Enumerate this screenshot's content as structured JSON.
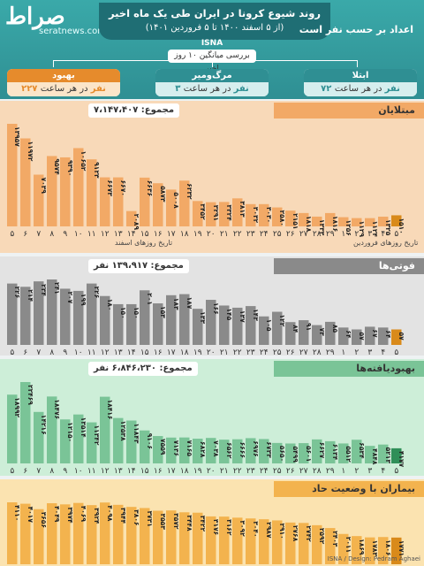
{
  "header": {
    "logo": "صراط",
    "site": "seratnews.com",
    "title": "روند شیوع کرونا در ایران طی یک ماه اخیر",
    "subtitle": "(از ۵ اسفند ۱۴۰۰ تا ۵ فروردین ۱۴۰۱)",
    "agency": "ISNA",
    "per_hour": "اعداد بر حسب نفر است",
    "avg_label": "بررسی میانگین ۱۰ روز اخیر"
  },
  "stats": [
    {
      "title": "بهبود",
      "value": "۲۲۷ نفر",
      "rest": " در هر ساعت",
      "color": "#e68b2c",
      "tone": "#fbe5c9"
    },
    {
      "title": "مرگ‌ومیر",
      "value": "۳ نفر",
      "rest": " در هر ساعت",
      "color": "#2f8f93",
      "tone": "#d6eeee"
    },
    {
      "title": "ابتلا",
      "value": "۷۲ نفر",
      "rest": " در هر ساعت",
      "color": "#2f8f93",
      "tone": "#d6eeee"
    }
  ],
  "x_labels": [
    "۵",
    "۶",
    "۷",
    "۸",
    "۹",
    "۱۰",
    "۱۱",
    "۱۲",
    "۱۳",
    "۱۴",
    "۱۵",
    "۱۶",
    "۱۷",
    "۱۸",
    "۱۹",
    "۲۰",
    "۲۱",
    "۲۲",
    "۲۳",
    "۲۴",
    "۲۵",
    "۲۶",
    "۲۷",
    "۲۸",
    "۲۹",
    "۱",
    "۲",
    "۳",
    "۴",
    "۵"
  ],
  "month_labels": {
    "esfand": "تاریخ روزهای اسفند",
    "farvardin": "تاریخ روزهای فروردین"
  },
  "footer": "ISNA / Design: Pedram Aghaei",
  "chart_data": [
    {
      "type": "bar",
      "title": "مبتلایان",
      "total": "مجموع: ۷،۱۴۷،۴۰۷",
      "color": "#f2a966",
      "highlight": "#d98a1a",
      "bg": "#f8d9b8",
      "categories": [
        "۵",
        "۶",
        "۷",
        "۸",
        "۹",
        "۱۰",
        "۱۱",
        "۱۲",
        "۱۳",
        "۱۴",
        "۱۵",
        "۱۶",
        "۱۷",
        "۱۸",
        "۱۹",
        "۲۰",
        "۲۱",
        "۲۲",
        "۲۳",
        "۲۴",
        "۲۵",
        "۲۶",
        "۲۷",
        "۲۸",
        "۲۹",
        "۱",
        "۲",
        "۳",
        "۴",
        "۵"
      ],
      "values": [
        13957,
        11972,
        7039,
        9574,
        9390,
        10652,
        9123,
        6673,
        6670,
        2089,
        6636,
        5873,
        5008,
        6232,
        3452,
        3291,
        3324,
        3813,
        3032,
        3030,
        2580,
        2151,
        1818,
        1333,
        1816,
        1256,
        1129,
        1124,
        1325,
        1510
      ],
      "labels": [
        "۱۳۹۵۷",
        "۱۱۹۷۲",
        "۷۰۳۹",
        "۹۵۷۴",
        "۹۳۹۰",
        "۱۰۶۵۲",
        "۹۱۲۳",
        "۶۶۷۳",
        "۶۶۷۰",
        "۲۰۸۹",
        "۶۶۳۶",
        "۵۸۷۳",
        "۵۰۰۸",
        "۶۲۳۲",
        "۳۴۵۲",
        "۳۲۹۱",
        "۳۳۲۴",
        "۳۸۱۳",
        "۳۰۳۲",
        "۳۰۳۰",
        "۲۵۸۰",
        "۲۱۵۱",
        "۱۸۱۸",
        "۱۳۳۳",
        "۱۸۱۶",
        "۱۲۵۶",
        "۱۱۲۹",
        "۱۱۲۴",
        "۱۳۲۵",
        "۱۵۱۰"
      ]
    },
    {
      "type": "bar",
      "title": "فوتی‌ها",
      "total": "مجموع: ۱۳۹،۹۱۷ نفر",
      "color": "#8a8a8a",
      "highlight": "#d98a1a",
      "bg": "#e3e3e3",
      "categories": [
        "۵",
        "۶",
        "۷",
        "۸",
        "۹",
        "۱۰",
        "۱۱",
        "۱۲",
        "۱۳",
        "۱۴",
        "۱۵",
        "۱۶",
        "۱۷",
        "۱۸",
        "۱۹",
        "۲۰",
        "۲۱",
        "۲۲",
        "۲۳",
        "۲۴",
        "۲۵",
        "۲۶",
        "۲۷",
        "۲۸",
        "۲۹",
        "۱",
        "۲",
        "۳",
        "۴",
        "۵"
      ],
      "values": [
        226,
        214,
        234,
        241,
        207,
        199,
        226,
        180,
        150,
        150,
        201,
        153,
        183,
        187,
        133,
        166,
        145,
        137,
        143,
        105,
        122,
        84,
        91,
        73,
        85,
        64,
        57,
        67,
        64,
        57
      ],
      "labels": [
        "۲۲۶",
        "۲۱۴",
        "۲۳۴",
        "۲۴۱",
        "۲۰۷",
        "۱۹۹",
        "۲۲۶",
        "۱۸۰",
        "۱۵۰",
        "۱۵۰",
        "۲۰۱",
        "۱۵۳",
        "۱۸۳",
        "۱۸۷",
        "۱۳۳",
        "۱۶۶",
        "۱۴۵",
        "۱۳۷",
        "۱۴۳",
        "۱۰۵",
        "۱۲۲",
        "۸۴",
        "۹۱",
        "۷۳",
        "۸۵",
        "۶۴",
        "۵۷",
        "۶۷",
        "۶۴",
        "۵۷"
      ]
    },
    {
      "type": "bar",
      "title": "بهبودیافته‌ها",
      "total": "مجموع: ۶،۸۴۶،۲۳۰ نفر",
      "color": "#7ac497",
      "highlight": "#2f8f58",
      "bg": "#cdeed8",
      "categories": [
        "۵",
        "۶",
        "۷",
        "۸",
        "۹",
        "۱۰",
        "۱۱",
        "۱۲",
        "۱۳",
        "۱۴",
        "۱۵",
        "۱۶",
        "۱۷",
        "۱۸",
        "۱۹",
        "۲۰",
        "۲۱",
        "۲۲",
        "۲۳",
        "۲۴",
        "۲۵",
        "۲۶",
        "۲۷",
        "۲۸",
        "۲۹",
        "۱",
        "۲",
        "۳",
        "۴",
        "۵"
      ],
      "values": [
        18992,
        22469,
        14216,
        18476,
        12150,
        13514,
        11342,
        18416,
        12538,
        11843,
        9106,
        7559,
        7136,
        7165,
        6828,
        7038,
        6562,
        6666,
        6976,
        6733,
        5650,
        5499,
        5601,
        6627,
        6134,
        5512,
        6534,
        4848,
        5213,
        4177
      ],
      "labels": [
        "۱۸۹۹۲",
        "۲۲۴۶۹",
        "۱۴۲۱۶",
        "۱۸۴۷۶",
        "۱۲۱۵۰",
        "۱۳۵۱۴",
        "۱۱۳۴۲",
        "۱۸۴۱۶",
        "۱۲۵۳۸",
        "۱۱۸۴۳",
        "۹۱۰۶",
        "۷۵۵۹",
        "۷۱۳۶",
        "۷۱۶۵",
        "۶۸۲۸",
        "۷۰۳۸",
        "۶۵۶۲",
        "۶۶۶۶",
        "۶۹۷۶",
        "۶۷۳۳",
        "۵۶۵۰",
        "۵۴۹۹",
        "۵۶۰۱",
        "۶۶۲۷",
        "۶۱۳۴",
        "۵۵۱۲",
        "۶۵۳۴",
        "۴۸۴۸",
        "۵۲۱۳",
        "۴۱۷۷"
      ]
    },
    {
      "type": "bar",
      "title": "بیماران با وضعیت حاد",
      "color": "#f3b34e",
      "highlight": "#d98a1a",
      "bg": "#fbe3b0",
      "categories": [
        "۵",
        "۶",
        "۷",
        "۸",
        "۹",
        "۱۰",
        "۱۱",
        "۱۲",
        "۱۳",
        "۱۴",
        "۱۵",
        "۱۶",
        "۱۷",
        "۱۸",
        "۱۹",
        "۲۰",
        "۲۱",
        "۲۲",
        "۲۳",
        "۲۴",
        "۲۵",
        "۲۶",
        "۲۷",
        "۲۸",
        "۲۹",
        "۱",
        "۲",
        "۳",
        "۴",
        "۵"
      ],
      "values": [
        4110,
        4017,
        3656,
        4049,
        3974,
        4069,
        3924,
        4098,
        3944,
        3806,
        3731,
        3553,
        3572,
        3448,
        3422,
        3176,
        3162,
        3092,
        3040,
        2987,
        2910,
        2768,
        2742,
        2592,
        2403,
        2011,
        1869,
        1783,
        1806,
        1771
      ],
      "labels": [
        "۴۱۱۰",
        "۴۰۱۷",
        "۳۶۵۶",
        "۴۰۴۹",
        "۳۹۷۴",
        "۴۰۶۹",
        "۳۹۲۴",
        "۴۰۹۸",
        "۳۹۴۴",
        "۳۸۰۶",
        "۳۷۳۱",
        "۳۵۵۳",
        "۳۵۷۲",
        "۳۴۴۸",
        "۳۴۲۲",
        "۳۱۷۶",
        "۳۱۶۲",
        "۳۰۹۲",
        "۳۰۴۰",
        "۲۹۸۷",
        "۲۹۱۰",
        "۲۷۶۸",
        "۲۷۴۲",
        "۲۵۹۲",
        "۲۴۰۳",
        "۲۰۱۱",
        "۱۸۶۹",
        "۱۷۸۳",
        "۱۸۰۶",
        "۱۷۷۱"
      ]
    }
  ]
}
